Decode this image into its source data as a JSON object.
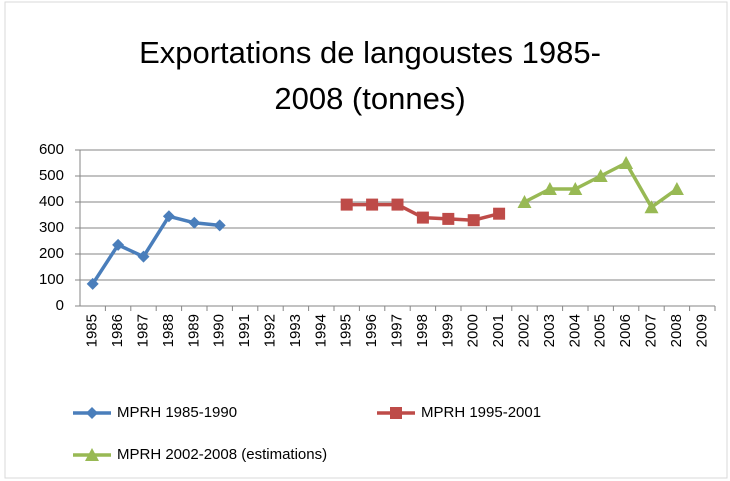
{
  "chart_data": {
    "type": "line",
    "title": "Exportations de langoustes 1985-2008 (tonnes)",
    "categories": [
      "1985",
      "1986",
      "1987",
      "1988",
      "1989",
      "1990",
      "1991",
      "1992",
      "1993",
      "1994",
      "1995",
      "1996",
      "1997",
      "1998",
      "1999",
      "2000",
      "2001",
      "2002",
      "2003",
      "2004",
      "2005",
      "2006",
      "2007",
      "2008",
      "2009"
    ],
    "series": [
      {
        "name": "MPRH 1985-1990",
        "color": "#4a7ebb",
        "marker": "diamond",
        "values": [
          85,
          235,
          190,
          345,
          320,
          310,
          null,
          null,
          null,
          null,
          null,
          null,
          null,
          null,
          null,
          null,
          null,
          null,
          null,
          null,
          null,
          null,
          null,
          null,
          null
        ]
      },
      {
        "name": "MPRH 1995-2001",
        "color": "#be4b48",
        "marker": "square",
        "values": [
          null,
          null,
          null,
          null,
          null,
          null,
          null,
          null,
          null,
          null,
          390,
          390,
          390,
          340,
          335,
          330,
          355,
          null,
          null,
          null,
          null,
          null,
          null,
          null,
          null
        ]
      },
      {
        "name": "MPRH 2002-2008 (estimations)",
        "color": "#98b954",
        "marker": "triangle",
        "values": [
          null,
          null,
          null,
          null,
          null,
          null,
          null,
          null,
          null,
          null,
          null,
          null,
          null,
          null,
          null,
          null,
          null,
          400,
          450,
          450,
          500,
          550,
          380,
          450,
          null
        ]
      }
    ],
    "ylim": [
      0,
      600
    ],
    "yticks": [
      0,
      100,
      200,
      300,
      400,
      500,
      600
    ],
    "grid": true,
    "legend": "bottom"
  }
}
